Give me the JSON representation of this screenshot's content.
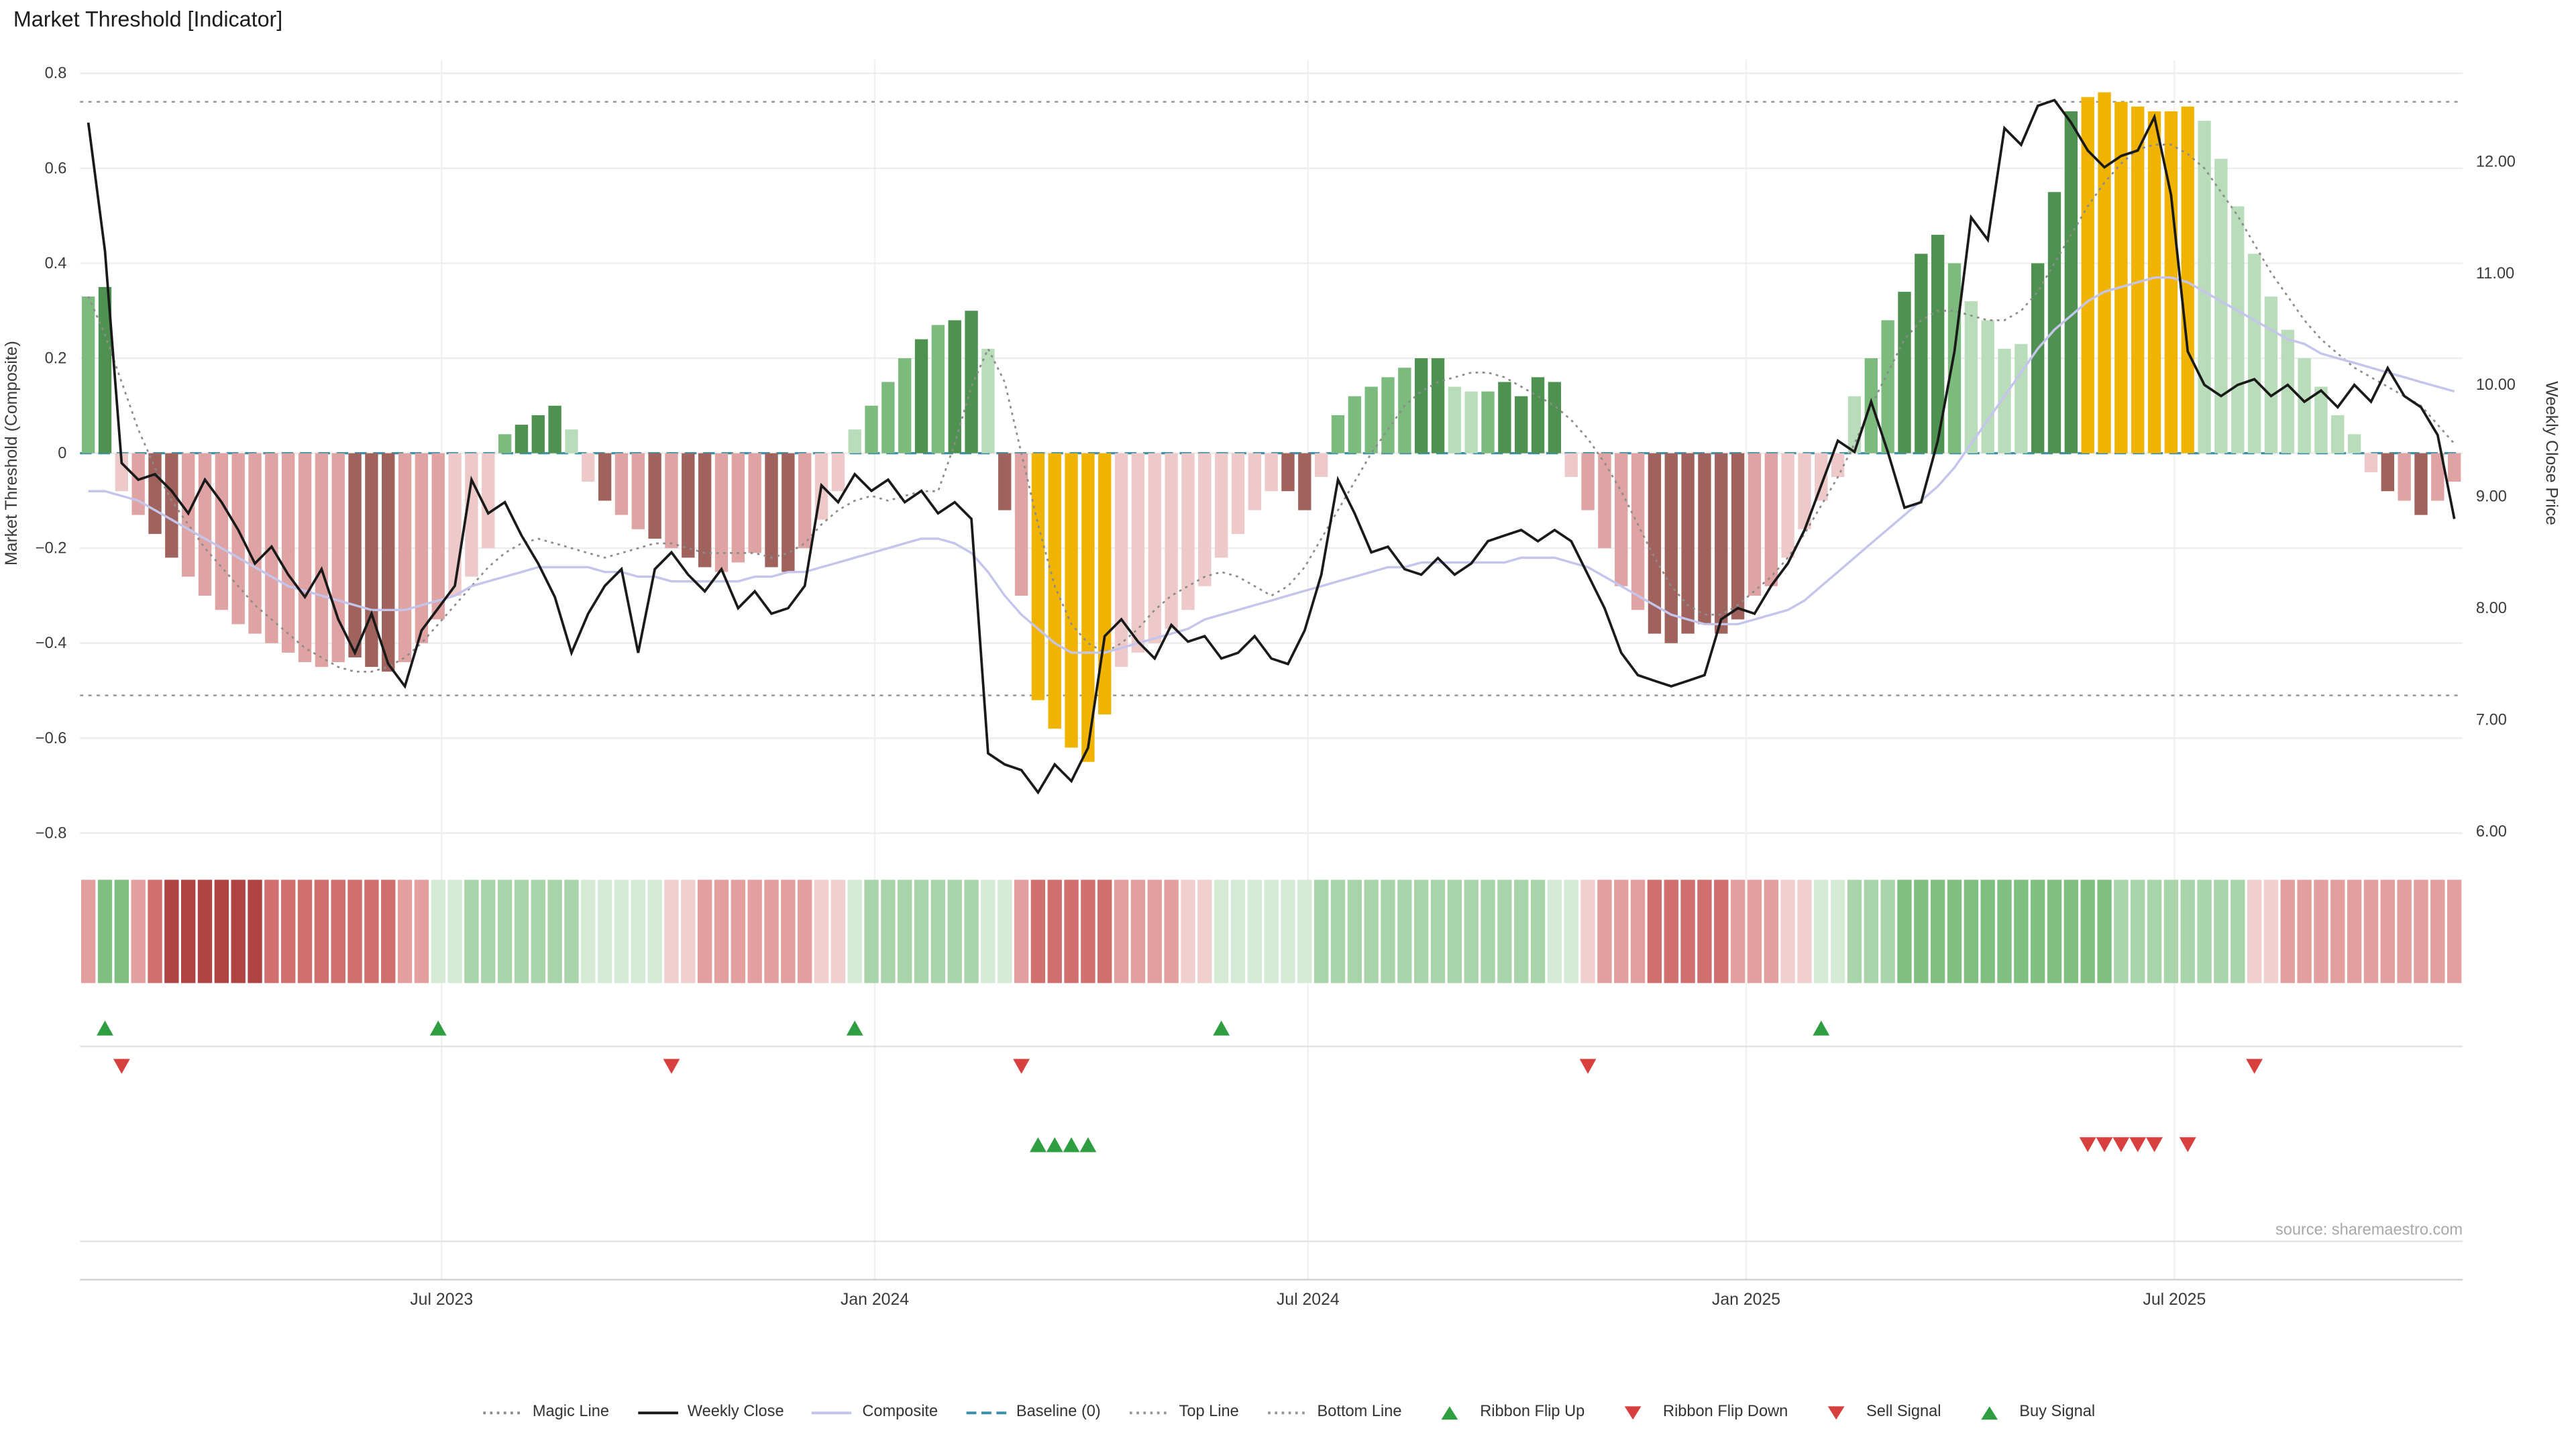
{
  "title": "Market Threshold [Indicator]",
  "source_text": "source: sharemaestro.com",
  "colors": {
    "weekly_close": "#1a1a1a",
    "composite": "#c5c5ec",
    "magic_line": "#8c8c8c",
    "baseline": "#3d8fa9",
    "ref_line": "#969696",
    "grid": "#ededed",
    "signal_green": "#2f9e41",
    "signal_red": "#d84040",
    "background": "#ffffff"
  },
  "axes": {
    "left_label": "Market Threshold (Composite)",
    "right_label": "Weekly Close Price",
    "left_ticks": [
      {
        "label": "0.8",
        "v": 0.8
      },
      {
        "label": "0.6",
        "v": 0.6
      },
      {
        "label": "0.4",
        "v": 0.4
      },
      {
        "label": "0.2",
        "v": 0.2
      },
      {
        "label": "0",
        "v": 0
      },
      {
        "label": "−0.2",
        "v": -0.2
      },
      {
        "label": "−0.4",
        "v": -0.4
      },
      {
        "label": "−0.6",
        "v": -0.6
      },
      {
        "label": "−0.8",
        "v": -0.8
      }
    ],
    "right_ticks": [
      {
        "label": "12.00",
        "p": 12
      },
      {
        "label": "11.00",
        "p": 11
      },
      {
        "label": "10.00",
        "p": 10
      },
      {
        "label": "9.00",
        "p": 9
      },
      {
        "label": "8.00",
        "p": 8
      },
      {
        "label": "7.00",
        "p": 7
      },
      {
        "label": "6.00",
        "p": 6
      }
    ],
    "x_ticks": [
      {
        "label": "Jul 2023",
        "week": 21.7
      },
      {
        "label": "Jan 2024",
        "week": 47.7
      },
      {
        "label": "Jul 2024",
        "week": 73.7
      },
      {
        "label": "Jan 2025",
        "week": 100.0
      },
      {
        "label": "Jul 2025",
        "week": 125.7
      }
    ]
  },
  "chart_data": {
    "type": "bar",
    "frequency": "weekly",
    "left_axis_range": [
      -0.8,
      0.8
    ],
    "right_axis_range": [
      6.0,
      12.6
    ],
    "reference_lines": {
      "baseline": 0,
      "top_line": 0.74,
      "bottom_line": -0.51
    },
    "bars": {
      "name": "Market Threshold (Composite)",
      "palette": {
        "dg": "#4e9150",
        "mg": "#7cba7e",
        "lg": "#b9dcba",
        "pp": "#eec9c9",
        "mp": "#dfa3a3",
        "dr": "#a0625c",
        "y": "#f0b400"
      },
      "values": [
        0.33,
        0.35,
        -0.08,
        -0.13,
        -0.17,
        -0.22,
        -0.26,
        -0.3,
        -0.33,
        -0.36,
        -0.38,
        -0.4,
        -0.42,
        -0.44,
        -0.45,
        -0.44,
        -0.43,
        -0.45,
        -0.46,
        -0.44,
        -0.4,
        -0.35,
        -0.3,
        -0.26,
        -0.2,
        0.04,
        0.06,
        0.08,
        0.1,
        0.05,
        -0.06,
        -0.1,
        -0.13,
        -0.16,
        -0.18,
        -0.2,
        -0.22,
        -0.24,
        -0.25,
        -0.23,
        -0.21,
        -0.24,
        -0.25,
        -0.2,
        -0.14,
        -0.08,
        0.05,
        0.1,
        0.15,
        0.2,
        0.24,
        0.27,
        0.28,
        0.3,
        0.22,
        -0.12,
        -0.3,
        -0.52,
        -0.58,
        -0.62,
        -0.65,
        -0.55,
        -0.45,
        -0.42,
        -0.4,
        -0.37,
        -0.33,
        -0.28,
        -0.22,
        -0.17,
        -0.12,
        -0.08,
        -0.08,
        -0.12,
        -0.05,
        0.08,
        0.12,
        0.14,
        0.16,
        0.18,
        0.2,
        0.2,
        0.14,
        0.13,
        0.13,
        0.15,
        0.12,
        0.16,
        0.15,
        -0.05,
        -0.12,
        -0.2,
        -0.28,
        -0.33,
        -0.38,
        -0.4,
        -0.38,
        -0.36,
        -0.38,
        -0.35,
        -0.3,
        -0.28,
        -0.22,
        -0.16,
        -0.1,
        -0.05,
        0.12,
        0.2,
        0.28,
        0.34,
        0.42,
        0.46,
        0.4,
        0.32,
        0.28,
        0.22,
        0.23,
        0.4,
        0.55,
        0.72,
        0.75,
        0.76,
        0.74,
        0.73,
        0.72,
        0.72,
        0.73,
        0.7,
        0.62,
        0.52,
        0.42,
        0.33,
        0.26,
        0.2,
        0.14,
        0.08,
        0.04,
        -0.04,
        -0.08,
        -0.1,
        -0.13,
        -0.1,
        -0.06
      ],
      "color_keys": [
        "mg",
        "dg",
        "pp",
        "mp",
        "dr",
        "dr",
        "mp",
        "mp",
        "mp",
        "mp",
        "mp",
        "mp",
        "mp",
        "mp",
        "mp",
        "mp",
        "dr",
        "dr",
        "dr",
        "mp",
        "mp",
        "mp",
        "pp",
        "pp",
        "pp",
        "mg",
        "dg",
        "dg",
        "dg",
        "lg",
        "pp",
        "dr",
        "mp",
        "mp",
        "dr",
        "mp",
        "dr",
        "dr",
        "mp",
        "mp",
        "mp",
        "dr",
        "dr",
        "mp",
        "pp",
        "pp",
        "lg",
        "mg",
        "mg",
        "mg",
        "dg",
        "mg",
        "dg",
        "dg",
        "lg",
        "dr",
        "mp",
        "y",
        "y",
        "y",
        "y",
        "y",
        "pp",
        "pp",
        "pp",
        "pp",
        "pp",
        "pp",
        "pp",
        "pp",
        "pp",
        "pp",
        "dr",
        "dr",
        "pp",
        "mg",
        "mg",
        "mg",
        "mg",
        "mg",
        "dg",
        "dg",
        "lg",
        "lg",
        "mg",
        "dg",
        "dg",
        "dg",
        "dg",
        "pp",
        "mp",
        "mp",
        "mp",
        "mp",
        "dr",
        "dr",
        "dr",
        "dr",
        "dr",
        "dr",
        "mp",
        "mp",
        "pp",
        "pp",
        "pp",
        "pp",
        "lg",
        "mg",
        "mg",
        "dg",
        "dg",
        "dg",
        "mg",
        "lg",
        "lg",
        "lg",
        "lg",
        "dg",
        "dg",
        "dg",
        "y",
        "y",
        "y",
        "y",
        "y",
        "y",
        "y",
        "lg",
        "lg",
        "lg",
        "lg",
        "lg",
        "lg",
        "lg",
        "lg",
        "lg",
        "lg",
        "pp",
        "dr",
        "mp",
        "dr",
        "mp",
        "mp"
      ]
    },
    "lines": [
      {
        "name": "Weekly Close",
        "axis": "right",
        "color_key": "weekly_close",
        "style": "solid",
        "values": [
          12.35,
          11.2,
          9.3,
          9.15,
          9.2,
          9.05,
          8.85,
          9.15,
          8.95,
          8.7,
          8.4,
          8.55,
          8.3,
          8.1,
          8.35,
          7.9,
          7.6,
          7.95,
          7.5,
          7.3,
          7.8,
          8.0,
          8.2,
          9.15,
          8.85,
          8.95,
          8.65,
          8.4,
          8.1,
          7.6,
          7.95,
          8.2,
          8.35,
          7.6,
          8.35,
          8.5,
          8.3,
          8.15,
          8.35,
          8.0,
          8.15,
          7.95,
          8.0,
          8.2,
          9.1,
          8.95,
          9.2,
          9.05,
          9.15,
          8.95,
          9.05,
          8.85,
          8.95,
          8.8,
          6.7,
          6.6,
          6.55,
          6.35,
          6.6,
          6.45,
          6.75,
          7.75,
          7.9,
          7.7,
          7.55,
          7.85,
          7.7,
          7.75,
          7.55,
          7.6,
          7.75,
          7.55,
          7.5,
          7.8,
          8.3,
          9.15,
          8.85,
          8.5,
          8.55,
          8.35,
          8.3,
          8.45,
          8.3,
          8.4,
          8.6,
          8.65,
          8.7,
          8.6,
          8.7,
          8.6,
          8.3,
          8.0,
          7.6,
          7.4,
          7.35,
          7.3,
          7.35,
          7.4,
          7.9,
          8.0,
          7.95,
          8.2,
          8.4,
          8.7,
          9.1,
          9.5,
          9.4,
          9.85,
          9.4,
          8.9,
          8.95,
          9.5,
          10.3,
          11.5,
          11.3,
          12.3,
          12.15,
          12.5,
          12.55,
          12.35,
          12.1,
          11.95,
          12.05,
          12.1,
          12.4,
          11.7,
          10.3,
          10.0,
          9.9,
          10.0,
          10.05,
          9.9,
          10.0,
          9.85,
          9.95,
          9.8,
          10.0,
          9.85,
          10.15,
          9.9,
          9.8,
          9.55,
          8.8
        ]
      },
      {
        "name": "Composite",
        "axis": "left",
        "color_key": "composite",
        "style": "solid",
        "values": [
          -0.08,
          -0.08,
          -0.09,
          -0.1,
          -0.12,
          -0.14,
          -0.16,
          -0.18,
          -0.2,
          -0.22,
          -0.24,
          -0.26,
          -0.28,
          -0.29,
          -0.3,
          -0.31,
          -0.32,
          -0.33,
          -0.33,
          -0.33,
          -0.32,
          -0.31,
          -0.3,
          -0.28,
          -0.27,
          -0.26,
          -0.25,
          -0.24,
          -0.24,
          -0.24,
          -0.24,
          -0.25,
          -0.25,
          -0.26,
          -0.26,
          -0.27,
          -0.27,
          -0.27,
          -0.27,
          -0.27,
          -0.26,
          -0.26,
          -0.25,
          -0.25,
          -0.24,
          -0.23,
          -0.22,
          -0.21,
          -0.2,
          -0.19,
          -0.18,
          -0.18,
          -0.19,
          -0.21,
          -0.25,
          -0.3,
          -0.34,
          -0.37,
          -0.4,
          -0.42,
          -0.42,
          -0.42,
          -0.41,
          -0.4,
          -0.39,
          -0.38,
          -0.37,
          -0.35,
          -0.34,
          -0.33,
          -0.32,
          -0.31,
          -0.3,
          -0.29,
          -0.28,
          -0.27,
          -0.26,
          -0.25,
          -0.24,
          -0.24,
          -0.23,
          -0.23,
          -0.23,
          -0.23,
          -0.23,
          -0.23,
          -0.22,
          -0.22,
          -0.22,
          -0.23,
          -0.24,
          -0.26,
          -0.28,
          -0.3,
          -0.32,
          -0.34,
          -0.35,
          -0.36,
          -0.36,
          -0.36,
          -0.35,
          -0.34,
          -0.33,
          -0.31,
          -0.28,
          -0.25,
          -0.22,
          -0.19,
          -0.16,
          -0.13,
          -0.1,
          -0.07,
          -0.03,
          0.02,
          0.07,
          0.12,
          0.17,
          0.22,
          0.26,
          0.29,
          0.32,
          0.34,
          0.35,
          0.36,
          0.37,
          0.37,
          0.36,
          0.34,
          0.32,
          0.3,
          0.28,
          0.26,
          0.24,
          0.23,
          0.21,
          0.2,
          0.19,
          0.18,
          0.17,
          0.16,
          0.15,
          0.14,
          0.13
        ]
      },
      {
        "name": "Magic Line",
        "axis": "left",
        "color_key": "magic_line",
        "style": "dotted",
        "values": [
          0.33,
          0.25,
          0.15,
          0.05,
          -0.03,
          -0.1,
          -0.15,
          -0.2,
          -0.24,
          -0.28,
          -0.32,
          -0.35,
          -0.38,
          -0.41,
          -0.43,
          -0.45,
          -0.46,
          -0.46,
          -0.45,
          -0.43,
          -0.4,
          -0.36,
          -0.32,
          -0.28,
          -0.24,
          -0.21,
          -0.19,
          -0.18,
          -0.19,
          -0.2,
          -0.21,
          -0.22,
          -0.21,
          -0.2,
          -0.19,
          -0.19,
          -0.2,
          -0.21,
          -0.21,
          -0.21,
          -0.21,
          -0.22,
          -0.21,
          -0.19,
          -0.15,
          -0.12,
          -0.1,
          -0.09,
          -0.1,
          -0.09,
          -0.08,
          -0.08,
          0.02,
          0.14,
          0.22,
          0.15,
          0.0,
          -0.15,
          -0.28,
          -0.36,
          -0.4,
          -0.42,
          -0.4,
          -0.37,
          -0.33,
          -0.3,
          -0.28,
          -0.26,
          -0.25,
          -0.26,
          -0.28,
          -0.3,
          -0.28,
          -0.24,
          -0.18,
          -0.12,
          -0.06,
          0.0,
          0.05,
          0.1,
          0.13,
          0.15,
          0.16,
          0.17,
          0.17,
          0.16,
          0.14,
          0.12,
          0.1,
          0.07,
          0.03,
          -0.02,
          -0.08,
          -0.15,
          -0.22,
          -0.28,
          -0.32,
          -0.34,
          -0.34,
          -0.32,
          -0.29,
          -0.26,
          -0.22,
          -0.17,
          -0.11,
          -0.05,
          0.02,
          0.1,
          0.17,
          0.24,
          0.28,
          0.3,
          0.3,
          0.29,
          0.28,
          0.28,
          0.3,
          0.34,
          0.4,
          0.46,
          0.52,
          0.57,
          0.61,
          0.64,
          0.65,
          0.65,
          0.63,
          0.6,
          0.55,
          0.5,
          0.44,
          0.38,
          0.33,
          0.28,
          0.24,
          0.21,
          0.18,
          0.16,
          0.14,
          0.12,
          0.1,
          0.06,
          0.02
        ]
      }
    ]
  },
  "ribbon": {
    "palette": {
      "r1": "#f2cfcf",
      "r2": "#e39e9e",
      "r3": "#cf6f6f",
      "r4": "#b04343",
      "g1": "#d4ead4",
      "g2": "#a9d4aa",
      "g3": "#7fc082"
    },
    "cells": [
      "r2",
      "g3",
      "g3",
      "r2",
      "r3",
      "r4",
      "r4",
      "r4",
      "r4",
      "r4",
      "r4",
      "r3",
      "r3",
      "r3",
      "r3",
      "r3",
      "r3",
      "r3",
      "r3",
      "r2",
      "r2",
      "g1",
      "g1",
      "g2",
      "g2",
      "g2",
      "g2",
      "g2",
      "g2",
      "g2",
      "g1",
      "g1",
      "g1",
      "g1",
      "g1",
      "r1",
      "r1",
      "r2",
      "r2",
      "r2",
      "r2",
      "r2",
      "r2",
      "r2",
      "r1",
      "r1",
      "g1",
      "g2",
      "g2",
      "g2",
      "g2",
      "g2",
      "g2",
      "g2",
      "g1",
      "g1",
      "r2",
      "r3",
      "r3",
      "r3",
      "r3",
      "r3",
      "r2",
      "r2",
      "r2",
      "r2",
      "r1",
      "r1",
      "g1",
      "g1",
      "g1",
      "g1",
      "g1",
      "g1",
      "g2",
      "g2",
      "g2",
      "g2",
      "g2",
      "g2",
      "g2",
      "g2",
      "g2",
      "g2",
      "g2",
      "g2",
      "g2",
      "g2",
      "g1",
      "g1",
      "r1",
      "r2",
      "r2",
      "r2",
      "r3",
      "r3",
      "r3",
      "r3",
      "r3",
      "r2",
      "r2",
      "r2",
      "r1",
      "r1",
      "g1",
      "g1",
      "g2",
      "g2",
      "g2",
      "g3",
      "g3",
      "g3",
      "g3",
      "g3",
      "g3",
      "g3",
      "g3",
      "g3",
      "g3",
      "g3",
      "g3",
      "g3",
      "g2",
      "g2",
      "g2",
      "g2",
      "g2",
      "g2",
      "g2",
      "g2",
      "r1",
      "r1",
      "r2",
      "r2",
      "r2",
      "r2",
      "r2",
      "r2",
      "r2",
      "r2",
      "r2",
      "r2",
      "r2"
    ]
  },
  "signals": {
    "ribbon_flip_up_weeks": [
      1,
      21,
      46,
      68,
      104
    ],
    "ribbon_flip_down_weeks": [
      2,
      35,
      56,
      90,
      130
    ],
    "buy_signal_weeks": [
      57,
      58,
      59,
      60
    ],
    "sell_signal_weeks": [
      120,
      121,
      122,
      123,
      124,
      126
    ]
  },
  "legend": [
    {
      "label": "Magic Line",
      "marker": "line-dotted",
      "color": "#8c8c8c"
    },
    {
      "label": "Weekly Close",
      "marker": "line",
      "color": "#1a1a1a"
    },
    {
      "label": "Composite",
      "marker": "line",
      "color": "#c5c5ec"
    },
    {
      "label": "Baseline (0)",
      "marker": "line-dashed",
      "color": "#3d8fa9"
    },
    {
      "label": "Top Line",
      "marker": "line-dotted",
      "color": "#969696"
    },
    {
      "label": "Bottom Line",
      "marker": "line-dotted",
      "color": "#969696"
    },
    {
      "label": "Ribbon Flip Up",
      "marker": "triangle-up",
      "color": "#2f9e41"
    },
    {
      "label": "Ribbon Flip Down",
      "marker": "triangle-down",
      "color": "#d84040"
    },
    {
      "label": "Sell Signal",
      "marker": "triangle-down",
      "color": "#d84040"
    },
    {
      "label": "Buy Signal",
      "marker": "triangle-up",
      "color": "#2f9e41"
    }
  ]
}
